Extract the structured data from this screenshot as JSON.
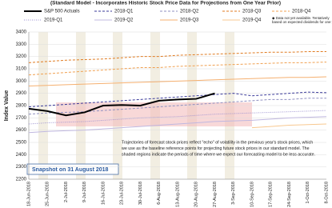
{
  "chart_data": {
    "type": "line",
    "title": "(Standard Model - Incorporates Historic Stock Price Data for Projections from One Year Prior)",
    "y_label": "Index Value",
    "categories": [
      "18-Jun-2018",
      "25-Jun-2018",
      "2-Jul-2018",
      "9-Jul-2018",
      "16-Jul-2018",
      "23-Jul-2018",
      "30-Jul-2018",
      "6-Aug-2018",
      "13-Aug-2018",
      "20-Aug-2018",
      "27-Aug-2018",
      "3-Sep-2018",
      "10-Sep-2018",
      "17-Sep-2018",
      "24-Sep-2018",
      "1-Oct-2018",
      "8-Oct-2018"
    ],
    "ylim": [
      2200,
      3400
    ],
    "yticks": [
      2200,
      2300,
      2400,
      2500,
      2600,
      2700,
      2800,
      2900,
      3000,
      3100,
      3200,
      3300,
      3400
    ],
    "grid": true,
    "series": [
      {
        "name": "S&P 500 Actuals",
        "color": "#000000",
        "style": "solid",
        "values": [
          2775,
          2755,
          2720,
          2745,
          2800,
          2805,
          2800,
          2840,
          2850,
          2855,
          2900,
          null,
          null,
          null,
          null,
          null,
          null
        ]
      },
      {
        "name": "2018-Q1",
        "color": "#3b3b9a",
        "style": "dashed",
        "values": [
          2790,
          2800,
          2810,
          2820,
          2830,
          2840,
          2850,
          2860,
          2870,
          2880,
          2890,
          2900,
          2880,
          2890,
          2900,
          2910,
          2905
        ]
      },
      {
        "name": "2018-Q2",
        "color": "#8f8fc0",
        "style": "dashed",
        "values": [
          2730,
          2740,
          2745,
          2750,
          2760,
          2770,
          2780,
          2790,
          2800,
          2810,
          2820,
          2830,
          2840,
          2850,
          2850,
          2860,
          2860
        ]
      },
      {
        "name": "2018-Q3",
        "color": "#e07b20",
        "style": "dashed",
        "values": [
          3150,
          3160,
          3170,
          3175,
          3180,
          3190,
          3200,
          3200,
          3210,
          3215,
          3220,
          3225,
          3230,
          3235,
          3235,
          3240,
          3240
        ]
      },
      {
        "name": "2018-Q4",
        "color": "#f0a050",
        "style": "dashed",
        "values": [
          3050,
          3060,
          3070,
          3080,
          3090,
          3100,
          3110,
          3110,
          3120,
          3125,
          3130,
          3135,
          3140,
          3145,
          3150,
          3150,
          3155
        ]
      },
      {
        "name": "2019-Q1",
        "color": "#9a8fd0",
        "style": "dotted",
        "values": [
          2650,
          2660,
          2665,
          2670,
          2680,
          2690,
          2700,
          2705,
          2710,
          2720,
          2730,
          2735,
          2740,
          2745,
          2750,
          2755,
          2760
        ]
      },
      {
        "name": "2019-Q2",
        "color": "#c0b8e0",
        "style": "solid",
        "values": [
          2580,
          2590,
          2595,
          2600,
          2610,
          2620,
          2630,
          2640,
          2650,
          2660,
          2670,
          2675,
          2680,
          2690,
          2700,
          2705,
          2710
        ]
      },
      {
        "name": "2019-Q3",
        "color": "#f5b070",
        "style": "solid",
        "values": [
          2960,
          2965,
          2970,
          2975,
          2980,
          2985,
          2990,
          2995,
          3000,
          3005,
          3010,
          3015,
          3020,
          3025,
          3030,
          3030,
          3035
        ]
      },
      {
        "name": "2019-Q4",
        "color": "#f8c890",
        "style": "solid",
        "values": [
          null,
          null,
          null,
          null,
          null,
          null,
          null,
          null,
          null,
          null,
          null,
          null,
          2620,
          2630,
          2640,
          2645,
          2650
        ]
      }
    ],
    "legend_note": "Data not yet available. Tentatively based on expected dividends for one year earlier.",
    "annotation_lines": [
      "Trajectories of forecast stock prices reflect \"echo\" of volatility in the previous year's stock prices, which",
      "we use as the baseline reference points for projecting future stock prices in our standard model. The",
      "shaded regions indicate the periods of time where we expect our forecasting model to be less accurate."
    ],
    "snapshot": "Snapshot on 31 August 2018"
  }
}
